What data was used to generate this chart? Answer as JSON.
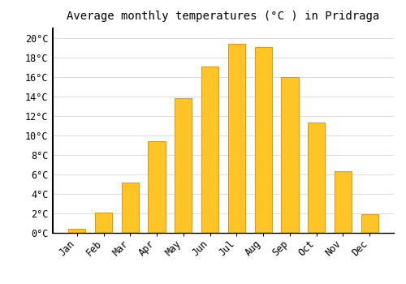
{
  "title": "Average monthly temperatures (°C ) in Pridraga",
  "months": [
    "Jan",
    "Feb",
    "Mar",
    "Apr",
    "May",
    "Jun",
    "Jul",
    "Aug",
    "Sep",
    "Oct",
    "Nov",
    "Dec"
  ],
  "values": [
    0.4,
    2.1,
    5.2,
    9.4,
    13.8,
    17.1,
    19.4,
    19.1,
    16.0,
    11.3,
    6.3,
    1.9
  ],
  "bar_color": "#FFC526",
  "bar_edge_color": "#E8960A",
  "background_color": "#FFFFFF",
  "grid_color": "#DDDDDD",
  "ylim": [
    0,
    21
  ],
  "yticks": [
    0,
    2,
    4,
    6,
    8,
    10,
    12,
    14,
    16,
    18,
    20
  ],
  "ytick_labels": [
    "0°C",
    "2°C",
    "4°C",
    "6°C",
    "8°C",
    "10°C",
    "12°C",
    "14°C",
    "16°C",
    "18°C",
    "20°C"
  ],
  "title_fontsize": 10,
  "tick_fontsize": 8.5,
  "bar_width": 0.65
}
